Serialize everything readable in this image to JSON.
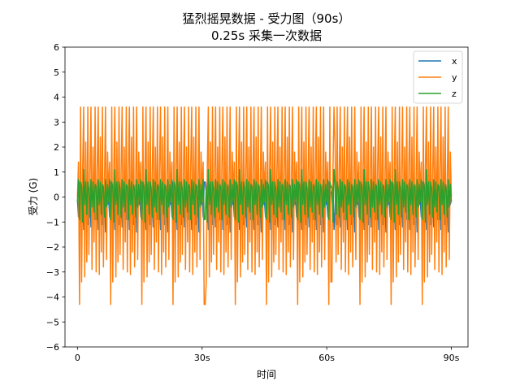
{
  "chart_data": {
    "type": "line",
    "title": "猛烈摇晃数据 - 受力图（90s）",
    "subtitle": "0.25s 采集一次数据",
    "xlabel": "时间",
    "ylabel": "受力 (G)",
    "xlim": [
      -3,
      94
    ],
    "ylim": [
      -6,
      6
    ],
    "x_ticks": [
      {
        "value": 0,
        "label": "0"
      },
      {
        "value": 30,
        "label": "30s"
      },
      {
        "value": 60,
        "label": "60s"
      },
      {
        "value": 90,
        "label": "90s"
      }
    ],
    "y_ticks": [
      {
        "value": -6,
        "label": "−6"
      },
      {
        "value": -5,
        "label": "−5"
      },
      {
        "value": -4,
        "label": "−4"
      },
      {
        "value": -3,
        "label": "−3"
      },
      {
        "value": -2,
        "label": "−2"
      },
      {
        "value": -1,
        "label": "−1"
      },
      {
        "value": 0,
        "label": "0"
      },
      {
        "value": 1,
        "label": "1"
      },
      {
        "value": 2,
        "label": "2"
      },
      {
        "value": 3,
        "label": "3"
      },
      {
        "value": 4,
        "label": "4"
      },
      {
        "value": 5,
        "label": "5"
      },
      {
        "value": 6,
        "label": "6"
      }
    ],
    "legend_position": "top-right",
    "grid": false,
    "sample_interval_s": 0.25,
    "pattern_period_s": 7.5,
    "series": [
      {
        "name": "x",
        "color": "#1f77b4",
        "pattern": [
          -0.1,
          -0.8,
          0.6,
          -1.0,
          0.2,
          0.6,
          -1.3,
          0.5,
          -0.6,
          0.7,
          -1.1,
          0.3,
          0.4,
          -1.2,
          0.6,
          -0.5,
          0.5,
          -0.9,
          0.2,
          0.6,
          -1.3,
          0.4,
          -0.4,
          0.6,
          -1.1,
          0.3,
          0.5,
          -1.4,
          0.6,
          -0.3
        ]
      },
      {
        "name": "y",
        "color": "#ff7f0e",
        "pattern": [
          0.0,
          1.4,
          -4.3,
          3.6,
          -3.4,
          1.1,
          3.6,
          -3.2,
          2.2,
          -2.6,
          3.6,
          -2.3,
          0.9,
          3.6,
          -2.9,
          2.0,
          -1.8,
          3.6,
          -3.0,
          1.2,
          3.6,
          -3.1,
          2.4,
          -2.2,
          3.6,
          -2.8,
          0.5,
          3.6,
          -2.5,
          1.8
        ]
      },
      {
        "name": "z",
        "color": "#2ca02c",
        "pattern": [
          -0.2,
          0.7,
          -0.9,
          0.6,
          0.4,
          -1.0,
          1.1,
          -0.3,
          0.6,
          -0.7,
          0.6,
          0.3,
          -0.8,
          0.7,
          -0.4,
          0.6,
          -0.6,
          0.5,
          0.4,
          -0.9,
          0.7,
          -0.3,
          0.6,
          -0.7,
          0.5,
          0.3,
          -0.8,
          0.7,
          -0.4,
          0.5
        ]
      }
    ]
  }
}
